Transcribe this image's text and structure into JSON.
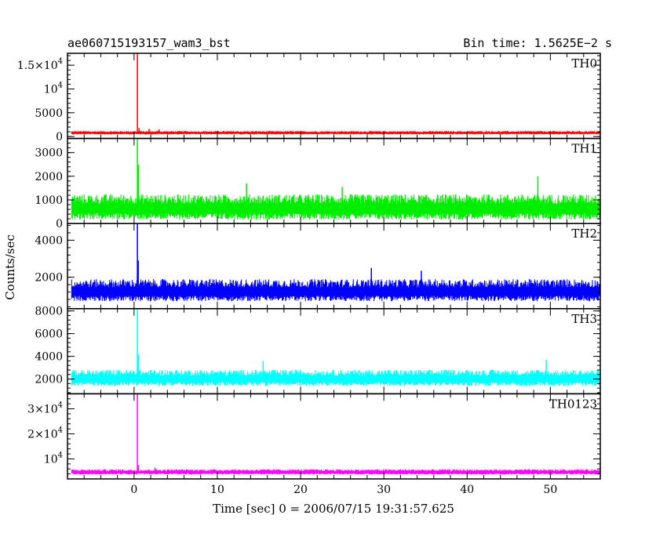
{
  "chart_data": {
    "type": "line",
    "title": "ae060715193157_wam3_bst",
    "bin_time": "Bin time: 1.5625E−2 s",
    "xlabel": "Time [sec] 0 = 2006/07/15 19:31:57.625",
    "ylabel": "Counts/sec",
    "xlim": [
      -8,
      56
    ],
    "xticks": [
      0,
      10,
      20,
      30,
      40,
      50
    ],
    "xtick_labels": [
      "0",
      "10",
      "20",
      "30",
      "40",
      "50"
    ],
    "data_range": [
      -7.5,
      56
    ],
    "panels": [
      {
        "name": "TH0",
        "color": "#ff0000",
        "ylim": [
          -400,
          17500
        ],
        "yticks": [
          {
            "v": 0,
            "label": "0"
          },
          {
            "v": 5000,
            "label": "5000"
          },
          {
            "v": 10000,
            "base": "10",
            "exp": "4"
          },
          {
            "v": 15000,
            "base": "1.5×10",
            "exp": "4"
          }
        ],
        "baseline": 800,
        "noise": 300,
        "spikes": [
          [
            0.4,
            17500
          ],
          [
            0.6,
            1800
          ],
          [
            1.8,
            1600
          ],
          [
            3.0,
            1500
          ]
        ]
      },
      {
        "name": "TH1",
        "color": "#00ee00",
        "ylim": [
          0,
          3600
        ],
        "yticks": [
          {
            "v": 0,
            "label": "0"
          },
          {
            "v": 1000,
            "label": "1000"
          },
          {
            "v": 2000,
            "label": "2000"
          },
          {
            "v": 3000,
            "label": "3000"
          }
        ],
        "baseline": 700,
        "noise": 450,
        "spikes": [
          [
            0.4,
            3600
          ],
          [
            0.5,
            2500
          ],
          [
            13.5,
            1700
          ],
          [
            25.0,
            1550
          ],
          [
            48.5,
            2000
          ]
        ]
      },
      {
        "name": "TH2",
        "color": "#0000ff",
        "ylim": [
          300,
          4900
        ],
        "yticks": [
          {
            "v": 2000,
            "label": "2000"
          },
          {
            "v": 4000,
            "label": "4000"
          }
        ],
        "baseline": 1300,
        "noise": 500,
        "spikes": [
          [
            0.4,
            4900
          ],
          [
            0.5,
            2900
          ],
          [
            28.5,
            2500
          ],
          [
            34.5,
            2350
          ]
        ]
      },
      {
        "name": "TH3",
        "color": "#00ffff",
        "ylim": [
          700,
          8200
        ],
        "yticks": [
          {
            "v": 2000,
            "label": "2000"
          },
          {
            "v": 4000,
            "label": "4000"
          },
          {
            "v": 6000,
            "label": "6000"
          },
          {
            "v": 8000,
            "label": "8000"
          }
        ],
        "baseline": 2100,
        "noise": 600,
        "spikes": [
          [
            0.4,
            8200
          ],
          [
            0.5,
            4200
          ],
          [
            15.5,
            3600
          ],
          [
            49.5,
            3700
          ]
        ]
      },
      {
        "name": "TH0123",
        "color": "#ff00ff",
        "ylim": [
          2000,
          36000
        ],
        "yticks": [
          {
            "v": 10000,
            "base": "10",
            "exp": "4"
          },
          {
            "v": 20000,
            "base": "2×10",
            "exp": "4"
          },
          {
            "v": 30000,
            "base": "3×10",
            "exp": "4"
          }
        ],
        "baseline": 4800,
        "noise": 900,
        "spikes": [
          [
            0.4,
            36000
          ],
          [
            0.5,
            7500
          ],
          [
            2.5,
            6500
          ]
        ]
      }
    ]
  }
}
